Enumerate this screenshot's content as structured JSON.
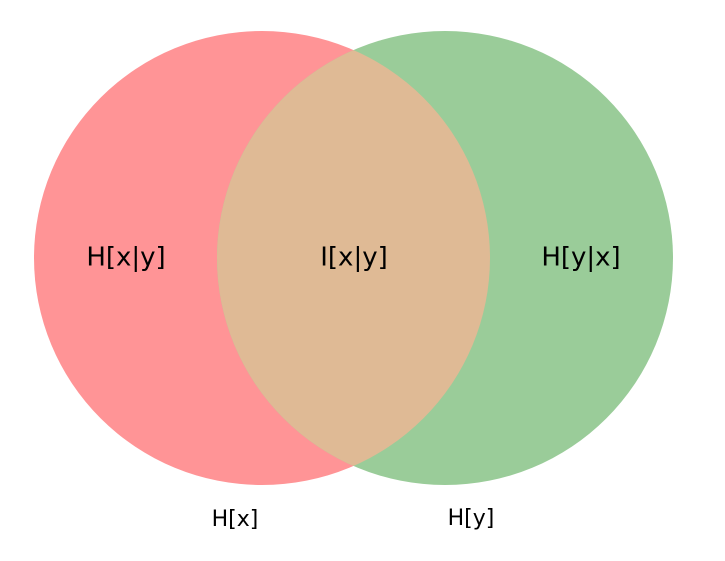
{
  "diagram": {
    "type": "venn2",
    "sets": [
      {
        "id": "x",
        "label": "H[x]",
        "color": "#ff9496"
      },
      {
        "id": "y",
        "label": "H[y]",
        "color": "#9acc99"
      }
    ],
    "regions": {
      "x_only": {
        "label": "H[x|y]",
        "color": "#ff9496"
      },
      "intersection": {
        "label": "I[x|y]",
        "color": "#dfba95"
      },
      "y_only": {
        "label": "H[y|x]",
        "color": "#9acc99"
      }
    }
  }
}
